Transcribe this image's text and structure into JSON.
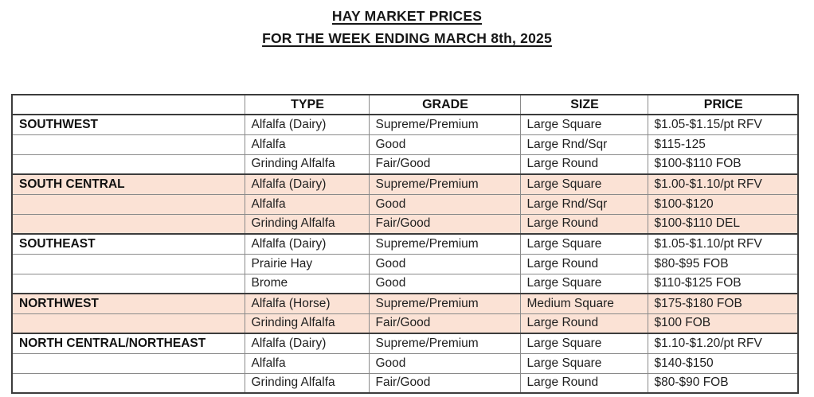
{
  "title": {
    "line1": "HAY MARKET PRICES",
    "line2": "FOR THE WEEK ENDING MARCH 8th, 2025"
  },
  "colors": {
    "highlight_row": "#fbe2d5",
    "border_dark": "#3c3c3c",
    "border_light": "#8a8a8a",
    "text": "#1f1f1f"
  },
  "table": {
    "columns": {
      "region": "",
      "type": "TYPE",
      "grade": "GRADE",
      "size": "SIZE",
      "price": "PRICE"
    },
    "rows": [
      {
        "region": "SOUTHWEST",
        "type": "Alfalfa (Dairy)",
        "grade": "Supreme/Premium",
        "size": "Large Square",
        "price": "$1.05-$1.15/pt RFV",
        "highlight": false,
        "group_start": true
      },
      {
        "region": "",
        "type": "Alfalfa",
        "grade": "Good",
        "size": "Large Rnd/Sqr",
        "price": "$115-125",
        "highlight": false,
        "group_start": false
      },
      {
        "region": "",
        "type": "Grinding Alfalfa",
        "grade": "Fair/Good",
        "size": "Large Round",
        "price": "$100-$110 FOB",
        "highlight": false,
        "group_start": false
      },
      {
        "region": "SOUTH CENTRAL",
        "type": "Alfalfa (Dairy)",
        "grade": "Supreme/Premium",
        "size": "Large Square",
        "price": "$1.00-$1.10/pt RFV",
        "highlight": true,
        "group_start": true
      },
      {
        "region": "",
        "type": "Alfalfa",
        "grade": "Good",
        "size": "Large Rnd/Sqr",
        "price": "$100-$120",
        "highlight": true,
        "group_start": false
      },
      {
        "region": "",
        "type": "Grinding Alfalfa",
        "grade": "Fair/Good",
        "size": "Large Round",
        "price": "$100-$110 DEL",
        "highlight": true,
        "group_start": false
      },
      {
        "region": "SOUTHEAST",
        "type": "Alfalfa (Dairy)",
        "grade": "Supreme/Premium",
        "size": "Large Square",
        "price": "$1.05-$1.10/pt RFV",
        "highlight": false,
        "group_start": true
      },
      {
        "region": "",
        "type": "Prairie Hay",
        "grade": "Good",
        "size": "Large Round",
        "price": "$80-$95 FOB",
        "highlight": false,
        "group_start": false
      },
      {
        "region": "",
        "type": "Brome",
        "grade": "Good",
        "size": "Large Square",
        "price": "$110-$125 FOB",
        "highlight": false,
        "group_start": false
      },
      {
        "region": "NORTHWEST",
        "type": "Alfalfa (Horse)",
        "grade": "Supreme/Premium",
        "size": "Medium Square",
        "price": "$175-$180 FOB",
        "highlight": true,
        "group_start": true
      },
      {
        "region": "",
        "type": "Grinding Alfalfa",
        "grade": "Fair/Good",
        "size": "Large Round",
        "price": "$100 FOB",
        "highlight": true,
        "group_start": false
      },
      {
        "region": "NORTH CENTRAL/NORTHEAST",
        "type": "Alfalfa (Dairy)",
        "grade": "Supreme/Premium",
        "size": "Large Square",
        "price": "$1.10-$1.20/pt RFV",
        "highlight": false,
        "group_start": true
      },
      {
        "region": "",
        "type": "Alfalfa",
        "grade": "Good",
        "size": "Large Square",
        "price": "$140-$150",
        "highlight": false,
        "group_start": false
      },
      {
        "region": "",
        "type": "Grinding Alfalfa",
        "grade": "Fair/Good",
        "size": "Large Round",
        "price": "$80-$90 FOB",
        "highlight": false,
        "group_start": false
      }
    ]
  }
}
